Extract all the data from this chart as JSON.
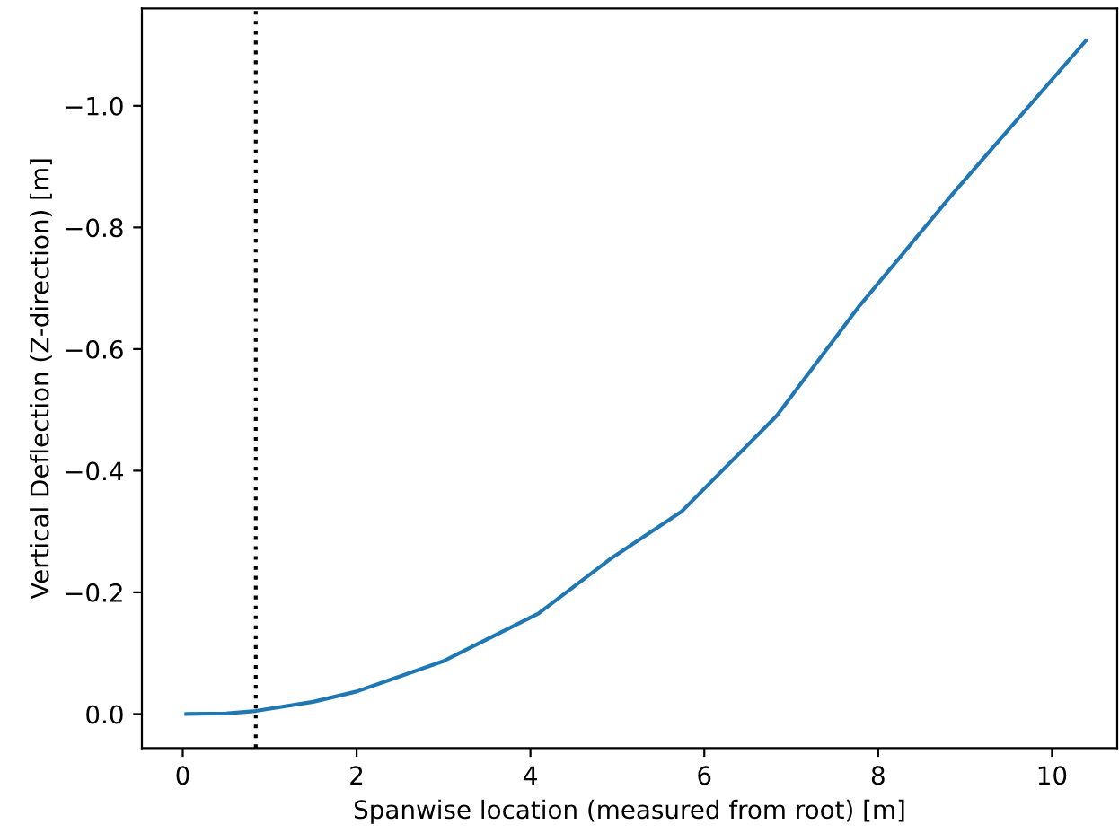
{
  "chart_data": {
    "type": "line",
    "xlabel": "Spanwise location (measured from root) [m]",
    "ylabel": "Vertical Deflection (Z-direction) [m]",
    "series": [
      {
        "color": "#1f77b4",
        "x": [
          0.04,
          0.5,
          0.84,
          1.5,
          2.0,
          3.0,
          4.09,
          4.91,
          5.74,
          6.83,
          7.79,
          8.88,
          10.39
        ],
        "values": [
          0.0,
          -0.001,
          -0.005,
          -0.02,
          -0.037,
          -0.087,
          -0.165,
          -0.254,
          -0.333,
          -0.49,
          -0.672,
          -0.859,
          -1.107
        ]
      }
    ],
    "ref_lines": [
      {
        "axis": "x",
        "value": 0.84,
        "color": "#000000",
        "line_style": "dotted"
      }
    ],
    "xlim": [
      -0.47,
      10.75
    ],
    "ylim": [
      0.056,
      -1.16
    ],
    "xticks": [
      0,
      2,
      4,
      6,
      8,
      10
    ],
    "yticks": [
      {
        "value": 0.0,
        "label": "0.0"
      },
      {
        "value": -0.2,
        "label": "−0.2"
      },
      {
        "value": -0.4,
        "label": "−0.4"
      },
      {
        "value": -0.6,
        "label": "−0.6"
      },
      {
        "value": -0.8,
        "label": "−0.8"
      },
      {
        "value": -1.0,
        "label": "−1.0"
      }
    ],
    "grid": false,
    "legend": false
  }
}
